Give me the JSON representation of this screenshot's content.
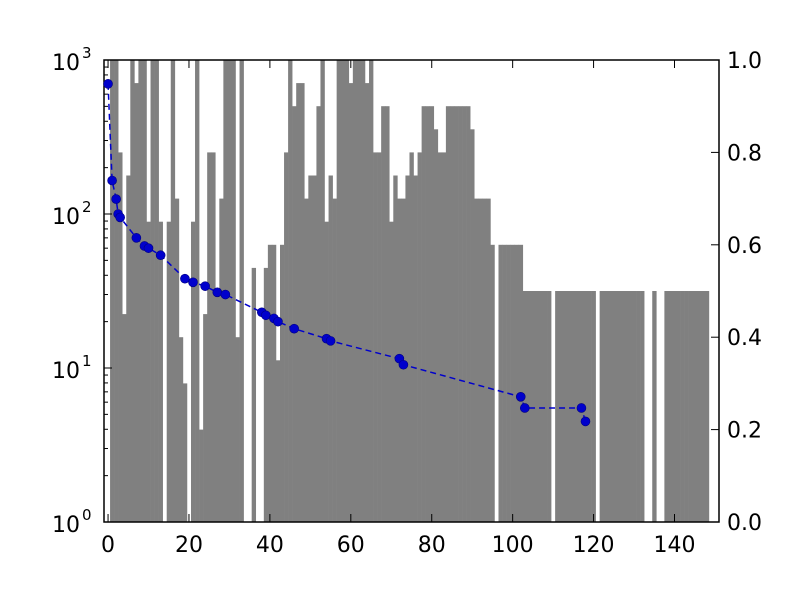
{
  "chart_data": {
    "type": "bar+line",
    "x_ticks": [
      0,
      20,
      40,
      60,
      80,
      100,
      120,
      140
    ],
    "xlim": [
      -1,
      151
    ],
    "left_axis": {
      "scale": "log",
      "ylim": [
        1,
        1000
      ],
      "tick_labels": [
        {
          "value": 1,
          "base": "10",
          "exp": "0"
        },
        {
          "value": 10,
          "base": "10",
          "exp": "1"
        },
        {
          "value": 100,
          "base": "10",
          "exp": "2"
        },
        {
          "value": 1000,
          "base": "10",
          "exp": "3"
        }
      ]
    },
    "right_axis": {
      "scale": "linear",
      "ylim": [
        0,
        1
      ],
      "tick_labels": [
        "0.0",
        "0.2",
        "0.4",
        "0.6",
        "0.8",
        "1.0"
      ]
    },
    "bars": {
      "axis": "right",
      "color": "#808080",
      "values": [
        0.02,
        1,
        1,
        0.8,
        0.45,
        0.75,
        1,
        0.95,
        1,
        1,
        0.65,
        1,
        1,
        0.65,
        1,
        0.65,
        1,
        0.7,
        0.4,
        0.3,
        0.6,
        0.65,
        1,
        0.2,
        0.45,
        0.8,
        0.8,
        0.5,
        0.7,
        1,
        1,
        1,
        0.4,
        1,
        0.45,
        0.35,
        0.55,
        0.05,
        0.05,
        0.55,
        0.6,
        0.6,
        0.35,
        0.6,
        0.8,
        1,
        0.9,
        0.95,
        0.95,
        0.7,
        0.75,
        0.75,
        0.9,
        1,
        0.65,
        0.75,
        0.7,
        1,
        1,
        1,
        0.95,
        1,
        1,
        1,
        0.95,
        1,
        0.8,
        0.8,
        0.9,
        0.9,
        0.65,
        0.75,
        0.7,
        0.7,
        0.75,
        0.8,
        0.75,
        0.8,
        0.9,
        0.9,
        0.9,
        0.85,
        0.8,
        0.8,
        0.9,
        0.9,
        0.9,
        0.9,
        0.9,
        0.9,
        0.85,
        0.7,
        0.7,
        0.7,
        0.7,
        0.6,
        0.6,
        0.6,
        0.6,
        0.6,
        0.6,
        0.6,
        0.6,
        0.5,
        0.5,
        0.5,
        0.5,
        0.5,
        0.5,
        0.5,
        0.5,
        0.5,
        0.5,
        0.5,
        0.5,
        0.5,
        0.5,
        0.5,
        0.5,
        0.5,
        0.5,
        0.5,
        0.5,
        0.5,
        0.5,
        0.5,
        0.5,
        0.5,
        0.5,
        0.5,
        0.5,
        0.5,
        0.5,
        0.5,
        0.5,
        0.5,
        0.5,
        0.5,
        0.5,
        0.5,
        0.5,
        0.5,
        0.5,
        0.5,
        0.5,
        0.5,
        0.5,
        0.5,
        0.5,
        0.5,
        0.5
      ],
      "zeros": [
        0,
        14,
        20,
        34,
        35,
        37,
        38,
        96,
        110,
        121,
        133,
        134,
        136,
        137,
        149,
        150
      ]
    },
    "line": {
      "axis": "left",
      "color": "#0000cc",
      "style": "dashed",
      "marker": "circle",
      "points": [
        [
          0,
          700
        ],
        [
          1,
          165
        ],
        [
          2,
          125
        ],
        [
          2.5,
          100
        ],
        [
          3,
          95
        ],
        [
          7,
          70
        ],
        [
          9,
          62
        ],
        [
          10,
          60
        ],
        [
          13,
          54
        ],
        [
          19,
          38
        ],
        [
          21,
          36
        ],
        [
          24,
          34
        ],
        [
          27,
          31
        ],
        [
          29,
          30
        ],
        [
          38,
          23
        ],
        [
          39,
          22
        ],
        [
          41,
          21
        ],
        [
          42,
          20
        ],
        [
          46,
          18
        ],
        [
          54,
          15.5
        ],
        [
          55,
          15
        ],
        [
          72,
          11.5
        ],
        [
          73,
          10.5
        ],
        [
          102,
          6.5
        ],
        [
          103,
          5.5
        ],
        [
          117,
          5.5
        ],
        [
          118,
          4.5
        ]
      ]
    }
  }
}
